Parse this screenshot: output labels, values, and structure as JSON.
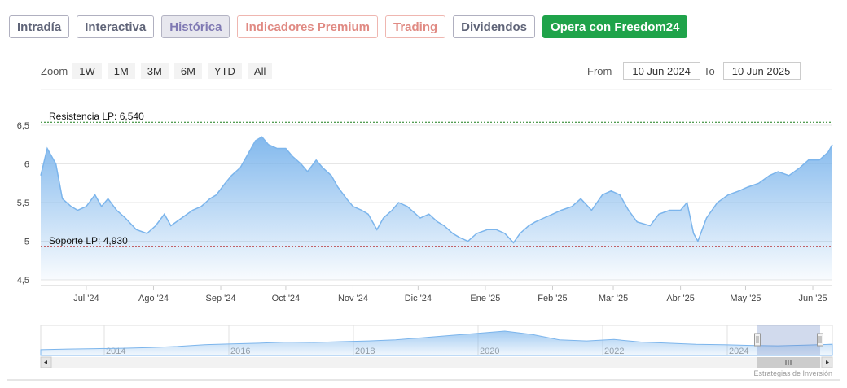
{
  "tabs": [
    {
      "label": "Intradía",
      "style": "normal"
    },
    {
      "label": "Interactiva",
      "style": "normal"
    },
    {
      "label": "Histórica",
      "style": "active"
    },
    {
      "label": "Indicadores Premium",
      "style": "premium"
    },
    {
      "label": "Trading",
      "style": "premium"
    },
    {
      "label": "Dividendos",
      "style": "normal"
    },
    {
      "label": "Opera con Freedom24",
      "style": "cta"
    }
  ],
  "zoom": {
    "label": "Zoom",
    "buttons": [
      "1W",
      "1M",
      "3M",
      "6M",
      "YTD",
      "All"
    ]
  },
  "range": {
    "from_label": "From",
    "from_value": "10 Jun 2024",
    "to_label": "To",
    "to_value": "10 Jun 2025"
  },
  "credit": "Estrategias de Inversión",
  "colors": {
    "line": "#7cb5ec",
    "resistance": "#1a7f1a",
    "support": "#b01010",
    "accent_cta": "#1fa34a"
  },
  "chart_data": {
    "type": "area",
    "x_start": "2024-06-10",
    "x_end": "2025-06-10",
    "ylim": [
      4.5,
      6.5
    ],
    "yticks": [
      "4,5",
      "5",
      "5,5",
      "6",
      "6,5"
    ],
    "xtick_labels": [
      {
        "date": "2024-07-01",
        "label": "Jul '24"
      },
      {
        "date": "2024-08-01",
        "label": "Ago '24"
      },
      {
        "date": "2024-09-01",
        "label": "Sep '24"
      },
      {
        "date": "2024-10-01",
        "label": "Oct '24"
      },
      {
        "date": "2024-11-01",
        "label": "Nov '24"
      },
      {
        "date": "2024-12-01",
        "label": "Dic '24"
      },
      {
        "date": "2025-01-01",
        "label": "Ene '25"
      },
      {
        "date": "2025-02-01",
        "label": "Feb '25"
      },
      {
        "date": "2025-03-01",
        "label": "Mar '25"
      },
      {
        "date": "2025-04-01",
        "label": "Abr '25"
      },
      {
        "date": "2025-05-01",
        "label": "May '25"
      },
      {
        "date": "2025-06-01",
        "label": "Jun '25"
      }
    ],
    "series": [
      {
        "points": [
          [
            "2024-06-10",
            5.85
          ],
          [
            "2024-06-13",
            6.2
          ],
          [
            "2024-06-17",
            6.0
          ],
          [
            "2024-06-20",
            5.55
          ],
          [
            "2024-06-24",
            5.45
          ],
          [
            "2024-06-27",
            5.4
          ],
          [
            "2024-07-01",
            5.45
          ],
          [
            "2024-07-05",
            5.6
          ],
          [
            "2024-07-08",
            5.45
          ],
          [
            "2024-07-11",
            5.55
          ],
          [
            "2024-07-15",
            5.4
          ],
          [
            "2024-07-19",
            5.3
          ],
          [
            "2024-07-24",
            5.15
          ],
          [
            "2024-07-29",
            5.1
          ],
          [
            "2024-08-02",
            5.2
          ],
          [
            "2024-08-06",
            5.35
          ],
          [
            "2024-08-09",
            5.2
          ],
          [
            "2024-08-14",
            5.3
          ],
          [
            "2024-08-19",
            5.4
          ],
          [
            "2024-08-23",
            5.45
          ],
          [
            "2024-08-27",
            5.55
          ],
          [
            "2024-08-30",
            5.6
          ],
          [
            "2024-09-03",
            5.75
          ],
          [
            "2024-09-06",
            5.85
          ],
          [
            "2024-09-10",
            5.95
          ],
          [
            "2024-09-13",
            6.1
          ],
          [
            "2024-09-17",
            6.3
          ],
          [
            "2024-09-20",
            6.35
          ],
          [
            "2024-09-23",
            6.25
          ],
          [
            "2024-09-27",
            6.2
          ],
          [
            "2024-10-01",
            6.2
          ],
          [
            "2024-10-04",
            6.1
          ],
          [
            "2024-10-08",
            6.0
          ],
          [
            "2024-10-11",
            5.9
          ],
          [
            "2024-10-15",
            6.05
          ],
          [
            "2024-10-18",
            5.95
          ],
          [
            "2024-10-22",
            5.85
          ],
          [
            "2024-10-25",
            5.7
          ],
          [
            "2024-10-29",
            5.55
          ],
          [
            "2024-11-01",
            5.45
          ],
          [
            "2024-11-05",
            5.4
          ],
          [
            "2024-11-08",
            5.35
          ],
          [
            "2024-11-12",
            5.15
          ],
          [
            "2024-11-15",
            5.3
          ],
          [
            "2024-11-19",
            5.4
          ],
          [
            "2024-11-22",
            5.5
          ],
          [
            "2024-11-26",
            5.45
          ],
          [
            "2024-12-02",
            5.3
          ],
          [
            "2024-12-06",
            5.35
          ],
          [
            "2024-12-10",
            5.25
          ],
          [
            "2024-12-13",
            5.2
          ],
          [
            "2024-12-17",
            5.1
          ],
          [
            "2024-12-20",
            5.05
          ],
          [
            "2024-12-24",
            5.0
          ],
          [
            "2024-12-28",
            5.1
          ],
          [
            "2025-01-02",
            5.15
          ],
          [
            "2025-01-06",
            5.15
          ],
          [
            "2025-01-10",
            5.1
          ],
          [
            "2025-01-14",
            4.98
          ],
          [
            "2025-01-17",
            5.1
          ],
          [
            "2025-01-21",
            5.2
          ],
          [
            "2025-01-24",
            5.25
          ],
          [
            "2025-01-28",
            5.3
          ],
          [
            "2025-02-01",
            5.35
          ],
          [
            "2025-02-05",
            5.4
          ],
          [
            "2025-02-10",
            5.45
          ],
          [
            "2025-02-14",
            5.55
          ],
          [
            "2025-02-19",
            5.4
          ],
          [
            "2025-02-24",
            5.6
          ],
          [
            "2025-02-28",
            5.65
          ],
          [
            "2025-03-04",
            5.6
          ],
          [
            "2025-03-08",
            5.4
          ],
          [
            "2025-03-12",
            5.25
          ],
          [
            "2025-03-18",
            5.2
          ],
          [
            "2025-03-22",
            5.35
          ],
          [
            "2025-03-27",
            5.4
          ],
          [
            "2025-04-01",
            5.4
          ],
          [
            "2025-04-04",
            5.5
          ],
          [
            "2025-04-07",
            5.1
          ],
          [
            "2025-04-09",
            5.0
          ],
          [
            "2025-04-13",
            5.3
          ],
          [
            "2025-04-18",
            5.5
          ],
          [
            "2025-04-23",
            5.6
          ],
          [
            "2025-04-28",
            5.65
          ],
          [
            "2025-05-02",
            5.7
          ],
          [
            "2025-05-07",
            5.75
          ],
          [
            "2025-05-12",
            5.85
          ],
          [
            "2025-05-16",
            5.9
          ],
          [
            "2025-05-21",
            5.85
          ],
          [
            "2025-05-26",
            5.95
          ],
          [
            "2025-05-30",
            6.05
          ],
          [
            "2025-06-04",
            6.05
          ],
          [
            "2025-06-08",
            6.15
          ],
          [
            "2025-06-10",
            6.25
          ]
        ]
      }
    ],
    "lines": [
      {
        "name": "resistance",
        "label": "Resistencia LP: 6,540",
        "value": 6.54
      },
      {
        "name": "support",
        "label": "Soporte LP: 4,930",
        "value": 4.93
      }
    ],
    "navigator": {
      "year_labels": [
        "2014",
        "2016",
        "2018",
        "2020",
        "2022",
        "2024"
      ],
      "values": [
        0.15,
        0.18,
        0.2,
        0.22,
        0.25,
        0.3,
        0.38,
        0.42,
        0.45,
        0.5,
        0.48,
        0.52,
        0.55,
        0.6,
        0.7,
        0.8,
        0.9,
        1.0,
        0.85,
        0.6,
        0.55,
        0.62,
        0.5,
        0.45,
        0.4,
        0.38,
        0.35,
        0.33,
        0.36,
        0.4
      ]
    }
  }
}
